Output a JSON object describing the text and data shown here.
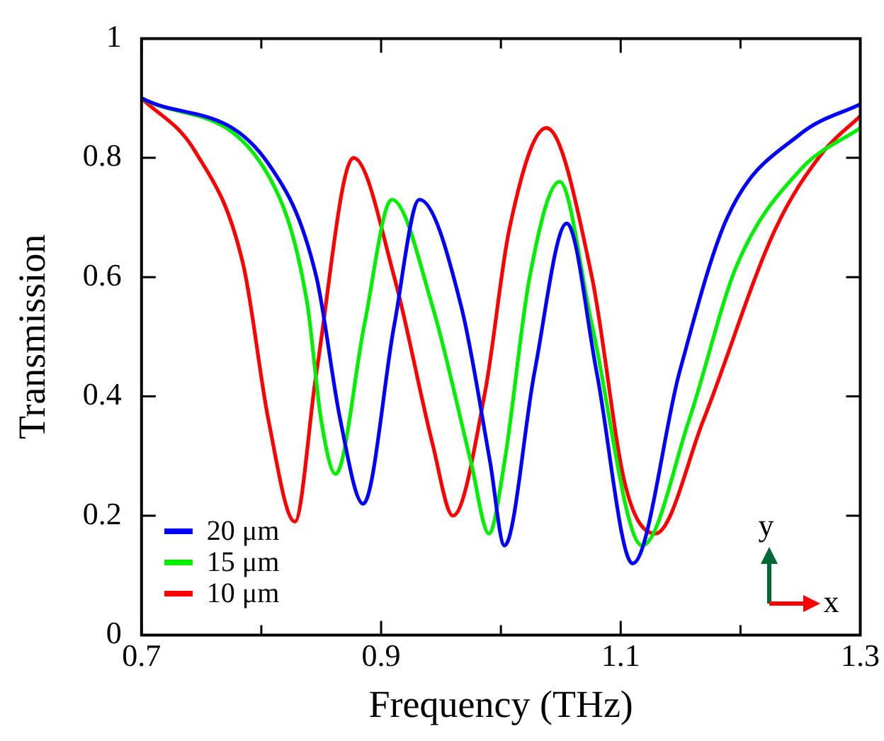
{
  "chart_data": {
    "type": "line",
    "xlabel": "Frequency (THz)",
    "ylabel": "Transmission",
    "xlim": [
      0.7,
      1.3
    ],
    "ylim": [
      0,
      1
    ],
    "xticks": [
      0.7,
      {
        "value": 0.8,
        "label": null
      },
      0.9,
      {
        "value": 1.0,
        "label": null
      },
      1.1,
      {
        "value": 1.2,
        "label": null
      },
      1.3
    ],
    "yticks": [
      0,
      0.2,
      0.4,
      0.6,
      0.8,
      1
    ],
    "grid": false,
    "legend": "bottom left",
    "annotations": [
      "y",
      "x"
    ],
    "series": [
      {
        "name": "20 μm",
        "color": "#0000ff",
        "x": [
          0.7,
          0.806,
          0.846,
          0.866,
          0.885,
          0.911,
          0.932,
          0.967,
          0.991,
          1.003,
          1.028,
          1.055,
          1.08,
          1.11,
          1.149,
          1.189,
          1.25,
          1.3
        ],
        "values": [
          0.9,
          0.79,
          0.6,
          0.36,
          0.22,
          0.52,
          0.73,
          0.55,
          0.29,
          0.15,
          0.44,
          0.69,
          0.44,
          0.12,
          0.44,
          0.7,
          0.84,
          0.89
        ]
      },
      {
        "name": "15 μm",
        "color": "#00ee00",
        "x": [
          0.7,
          0.806,
          0.838,
          0.85,
          0.862,
          0.886,
          0.909,
          0.943,
          0.975,
          0.99,
          1.003,
          1.024,
          1.049,
          1.076,
          1.118,
          1.157,
          1.197,
          1.25,
          1.3
        ],
        "values": [
          0.9,
          0.77,
          0.56,
          0.36,
          0.27,
          0.52,
          0.73,
          0.55,
          0.29,
          0.17,
          0.29,
          0.6,
          0.76,
          0.52,
          0.15,
          0.36,
          0.62,
          0.78,
          0.85
        ]
      },
      {
        "name": "10 μm",
        "color": "#ff0000",
        "x": [
          0.7,
          0.745,
          0.785,
          0.806,
          0.828,
          0.846,
          0.877,
          0.911,
          0.943,
          0.96,
          0.987,
          1.007,
          1.038,
          1.076,
          1.104,
          1.129,
          1.169,
          1.229,
          1.269,
          1.3
        ],
        "values": [
          0.9,
          0.81,
          0.62,
          0.36,
          0.19,
          0.44,
          0.8,
          0.6,
          0.32,
          0.2,
          0.41,
          0.68,
          0.85,
          0.6,
          0.25,
          0.17,
          0.36,
          0.68,
          0.81,
          0.87
        ]
      }
    ]
  }
}
